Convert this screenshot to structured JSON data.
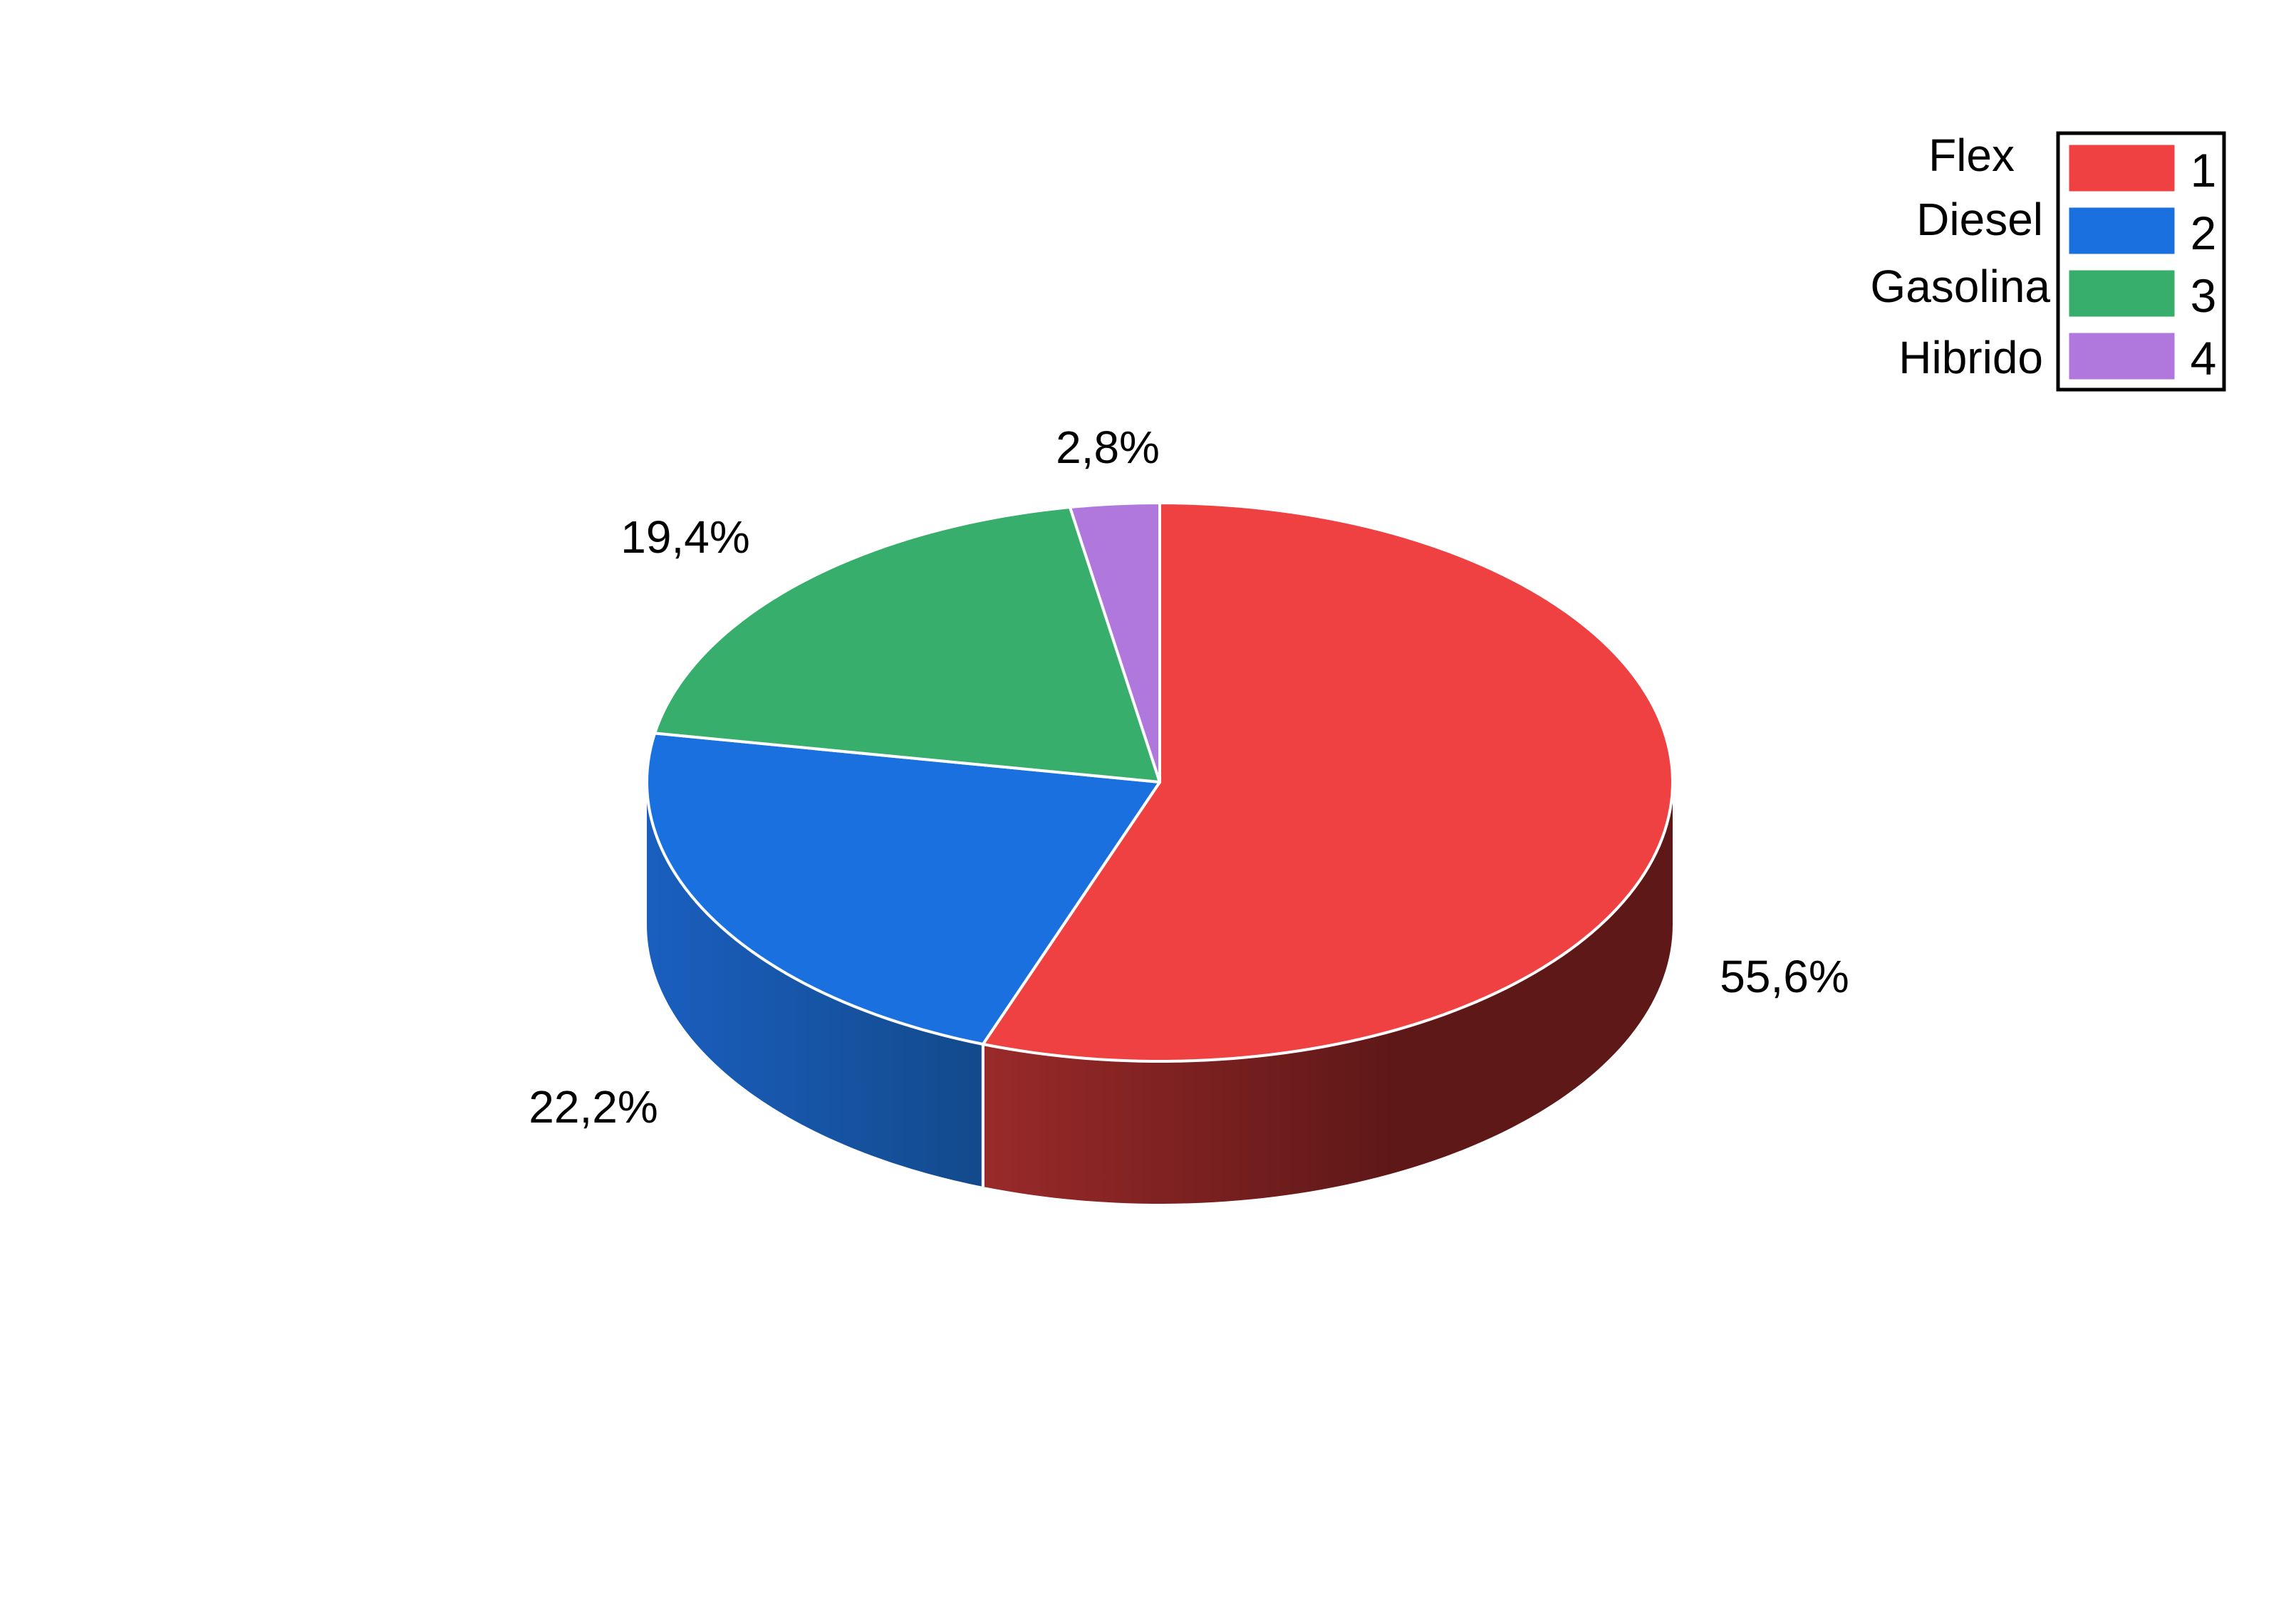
{
  "chart_data": {
    "type": "pie",
    "style": "3d",
    "start": "top, clockwise",
    "legend_position": "top-right",
    "slices": [
      {
        "name": "Flex",
        "key": "1",
        "value": 55.6,
        "label": "55,6%",
        "color": "#ef4142",
        "side_color": "#7a1b1c"
      },
      {
        "name": "Diesel",
        "key": "2",
        "value": 22.2,
        "label": "22,2%",
        "color": "#1b70df",
        "side_color": "#16509f"
      },
      {
        "name": "Gasolina",
        "key": "3",
        "value": 19.4,
        "label": "19,4%",
        "color": "#38ae6c",
        "side_color": "#226d44"
      },
      {
        "name": "Hibrido",
        "key": "4",
        "value": 2.8,
        "label": "2,8%",
        "color": "#b077dd",
        "side_color": "#6e4a8b"
      }
    ]
  }
}
